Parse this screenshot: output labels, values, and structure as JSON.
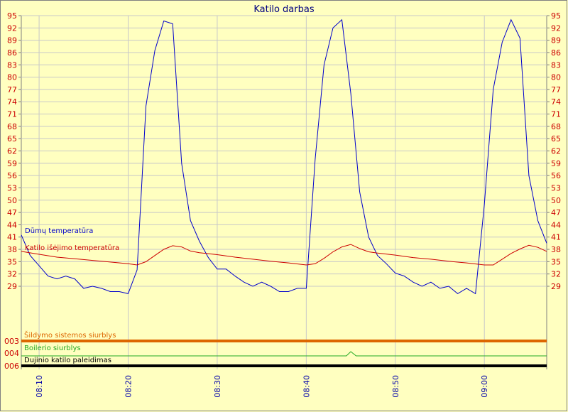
{
  "chart_data": {
    "type": "line",
    "title": "Katilo darbas",
    "y_ticks": [
      95,
      92,
      89,
      86,
      83,
      80,
      77,
      74,
      71,
      68,
      65,
      62,
      59,
      56,
      53,
      50,
      47,
      44,
      41,
      38,
      35,
      32,
      29
    ],
    "ylim": [
      29,
      95
    ],
    "x_ticks": [
      "08:10",
      "08:20",
      "08:30",
      "08:40",
      "08:50",
      "09:00"
    ],
    "x_tick_minutes": [
      10,
      20,
      30,
      40,
      50,
      60
    ],
    "xlim": [
      8,
      67
    ],
    "grid": true,
    "series": [
      {
        "name": "Dūmų temperatūra",
        "color": "#0000cc",
        "x": [
          8,
          9,
          10,
          11,
          12,
          13,
          14,
          15,
          16,
          17,
          18,
          19,
          20,
          21,
          22,
          23,
          24,
          25,
          26,
          27,
          28,
          29,
          30,
          31,
          32,
          33,
          34,
          35,
          36,
          37,
          38,
          39,
          40,
          41,
          42,
          43,
          44,
          45,
          46,
          47,
          48,
          49,
          50,
          51,
          52,
          53,
          54,
          55,
          56,
          57,
          58,
          59,
          60,
          61,
          62,
          63,
          64,
          65,
          66,
          67
        ],
        "y": [
          41.5,
          36.5,
          34,
          31.5,
          30.8,
          31.5,
          30.8,
          28.5,
          29,
          28.5,
          27.7,
          27.7,
          27.2,
          33,
          73,
          86.5,
          93.7,
          93,
          59,
          45,
          40,
          36,
          33.2,
          33.2,
          31.5,
          30,
          29,
          30,
          29,
          27.7,
          27.7,
          28.5,
          28.5,
          60,
          83,
          92,
          94,
          76,
          52,
          41,
          36.5,
          34.5,
          32.2,
          31.5,
          30,
          29,
          30,
          28.5,
          29,
          27.2,
          28.5,
          27.2,
          49,
          77,
          88.5,
          94,
          89.5,
          56,
          45,
          39.5
        ]
      },
      {
        "name": "Katilo išėjimo temperatūra",
        "color": "#cc0000",
        "x": [
          8,
          10,
          12,
          14,
          16,
          18,
          20,
          21,
          22,
          23,
          24,
          25,
          26,
          27,
          28,
          30,
          32,
          34,
          36,
          38,
          40,
          41,
          42,
          43,
          44,
          45,
          46,
          47,
          48,
          50,
          52,
          54,
          56,
          58,
          60,
          61,
          62,
          63,
          64,
          65,
          66,
          67
        ],
        "y": [
          37.5,
          36.8,
          36.1,
          35.7,
          35.3,
          34.9,
          34.5,
          34.2,
          35,
          36.5,
          38,
          38.9,
          38.6,
          37.6,
          37.2,
          36.7,
          36.1,
          35.6,
          35.1,
          34.7,
          34.2,
          34.5,
          35.8,
          37.4,
          38.6,
          39.2,
          38.2,
          37.4,
          37.1,
          36.6,
          36,
          35.6,
          35.1,
          34.7,
          34.2,
          34.2,
          35.6,
          37,
          38.1,
          39,
          38.5,
          37.5
        ]
      }
    ],
    "status_lanes": [
      {
        "code": "003",
        "name": "Šildymo sistemos siurblys",
        "color": "#dd6600",
        "x": [
          8,
          67
        ],
        "y": [
          0,
          0
        ]
      },
      {
        "code": "004",
        "name": "Boilerio siurblys",
        "color": "#22aa22",
        "x": [
          8,
          44.5,
          45,
          45.6,
          67
        ],
        "y": [
          0,
          0,
          1,
          0,
          0
        ]
      },
      {
        "code": "006",
        "name": "Dujinio katilo paleidimas",
        "color": "#000000",
        "x": [
          8,
          67
        ],
        "y": [
          0,
          0
        ]
      }
    ]
  }
}
